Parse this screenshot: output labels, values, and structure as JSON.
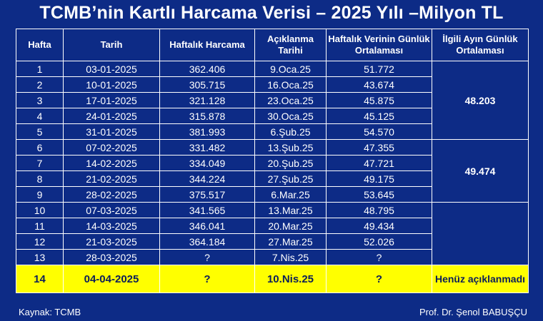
{
  "title": "TCMB’nin Kartlı Harcama Verisi – 2025 Yılı –Milyon TL",
  "headers": {
    "week": "Hafta",
    "date": "Tarih",
    "weekly_spending": "Haftalık Harcama",
    "release_date": "Açıklanma Tarihi",
    "weekly_daily_avg": "Haftalık Verinin Günlük Ortalaması",
    "monthly_daily_avg": "İlgili Ayın Günlük Ortalaması"
  },
  "rows": [
    {
      "week": "1",
      "date": "03-01-2025",
      "spending": "362.406",
      "release": "9.Oca.25",
      "daily_avg": "51.772"
    },
    {
      "week": "2",
      "date": "10-01-2025",
      "spending": "305.715",
      "release": "16.Oca.25",
      "daily_avg": "43.674"
    },
    {
      "week": "3",
      "date": "17-01-2025",
      "spending": "321.128",
      "release": "23.Oca.25",
      "daily_avg": "45.875"
    },
    {
      "week": "4",
      "date": "24-01-2025",
      "spending": "315.878",
      "release": "30.Oca.25",
      "daily_avg": "45.125"
    },
    {
      "week": "5",
      "date": "31-01-2025",
      "spending": "381.993",
      "release": "6.Şub.25",
      "daily_avg": "54.570"
    },
    {
      "week": "6",
      "date": "07-02-2025",
      "spending": "331.482",
      "release": "13.Şub.25",
      "daily_avg": "47.355"
    },
    {
      "week": "7",
      "date": "14-02-2025",
      "spending": "334.049",
      "release": "20.Şub.25",
      "daily_avg": "47.721"
    },
    {
      "week": "8",
      "date": "21-02-2025",
      "spending": "344.224",
      "release": "27.Şub.25",
      "daily_avg": "49.175"
    },
    {
      "week": "9",
      "date": "28-02-2025",
      "spending": "375.517",
      "release": "6.Mar.25",
      "daily_avg": "53.645"
    },
    {
      "week": "10",
      "date": "07-03-2025",
      "spending": "341.565",
      "release": "13.Mar.25",
      "daily_avg": "48.795"
    },
    {
      "week": "11",
      "date": "14-03-2025",
      "spending": "346.041",
      "release": "20.Mar.25",
      "daily_avg": "49.434"
    },
    {
      "week": "12",
      "date": "21-03-2025",
      "spending": "364.184",
      "release": "27.Mar.25",
      "daily_avg": "52.026"
    },
    {
      "week": "13",
      "date": "28-03-2025",
      "spending": "?",
      "release": "7.Nis.25",
      "daily_avg": "?"
    }
  ],
  "last_row": {
    "week": "14",
    "date": "04-04-2025",
    "spending": "?",
    "release": "10.Nis.25",
    "daily_avg": "?",
    "monthly": "Henüz açıklanmadı"
  },
  "monthly": {
    "january": "48.203",
    "february": "49.474",
    "march": ""
  },
  "colors": {
    "background": "#0d2b86",
    "highlight": "#ffff00",
    "text": "#ffffff"
  },
  "footer": {
    "source": "Kaynak: TCMB",
    "author": "Prof. Dr. Şenol BABUŞÇU"
  }
}
